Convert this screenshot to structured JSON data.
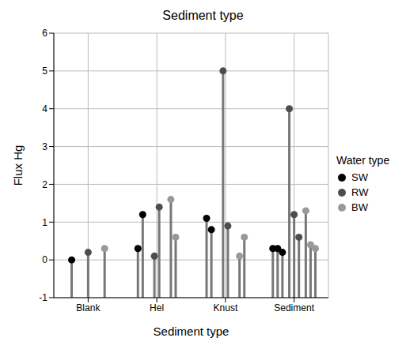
{
  "chart_data": {
    "type": "scatter",
    "marker": "circle",
    "title": "Sediment type",
    "x_label": "Sediment type",
    "y_label": "Flux Hg",
    "legend_title": "Water type",
    "categories": [
      "Blank",
      "Hel",
      "Knust",
      "Sediment"
    ],
    "ylim": [
      -1,
      6
    ],
    "yticks": [
      -1,
      0,
      1,
      2,
      3,
      4,
      5,
      6
    ],
    "grid": true,
    "legend": "right",
    "series": [
      {
        "name": "SW",
        "color": "#000000",
        "x": [
          "Blank",
          "Hel",
          "Hel",
          "Knust",
          "Knust",
          "Sediment",
          "Sediment",
          "Sediment"
        ],
        "values": [
          0.0,
          0.3,
          1.2,
          1.1,
          0.8,
          0.3,
          0.3,
          0.2
        ]
      },
      {
        "name": "RW",
        "color": "#4d4d4d",
        "x": [
          "Blank",
          "Hel",
          "Hel",
          "Knust",
          "Knust",
          "Sediment",
          "Sediment",
          "Sediment"
        ],
        "values": [
          0.2,
          0.1,
          1.4,
          5.0,
          0.9,
          4.0,
          1.2,
          0.6
        ]
      },
      {
        "name": "BW",
        "color": "#999999",
        "x": [
          "Blank",
          "Hel",
          "Hel",
          "Knust",
          "Knust",
          "Sediment",
          "Sediment",
          "Sediment"
        ],
        "values": [
          0.3,
          1.6,
          0.6,
          0.1,
          0.6,
          1.3,
          0.4,
          0.3
        ]
      }
    ]
  }
}
